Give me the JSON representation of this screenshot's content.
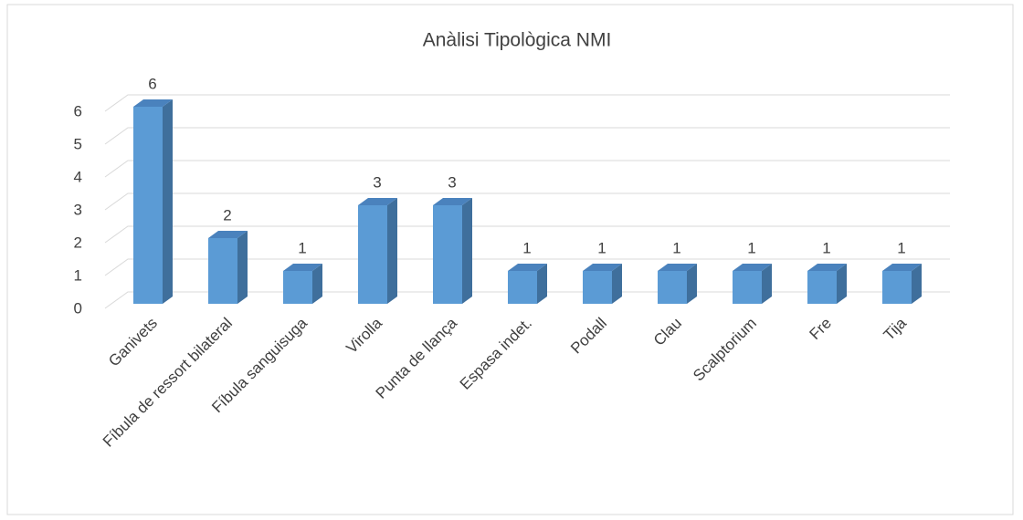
{
  "chart_data": {
    "type": "bar",
    "title": "Anàlisi Tipològica NMI",
    "categories": [
      "Ganivets",
      "Fíbula de ressort bilateral",
      "Fíbula sanguisuga",
      "Virolla",
      "Punta de llança",
      "Espasa indet.",
      "Podall",
      "Clau",
      "Scalptorium",
      "Fre",
      "Tija"
    ],
    "values": [
      6,
      2,
      1,
      3,
      3,
      1,
      1,
      1,
      1,
      1,
      1
    ],
    "color": "#5b9bd5",
    "ylim": [
      0,
      6
    ],
    "yticks": [
      0,
      1,
      2,
      3,
      4,
      5,
      6
    ],
    "grid": true
  }
}
